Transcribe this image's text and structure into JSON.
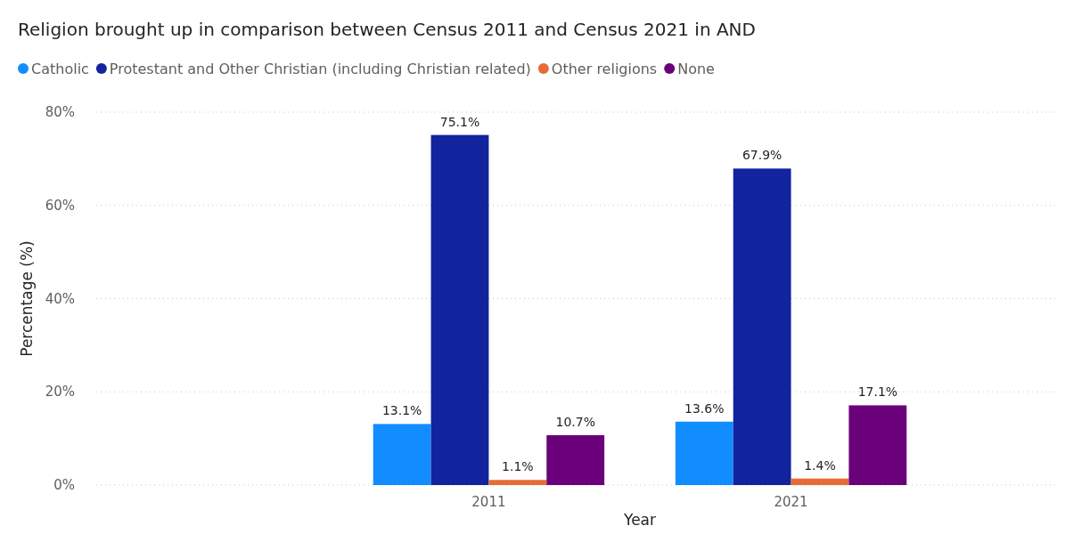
{
  "chart_data": {
    "type": "bar",
    "title": "Religion brought up in comparison between Census 2011 and Census 2021 in AND",
    "xlabel": "Year",
    "ylabel": "Percentage (%)",
    "categories": [
      "2011",
      "2021"
    ],
    "series": [
      {
        "name": "Catholic",
        "color": "#118dff",
        "values": [
          13.1,
          13.6
        ],
        "value_labels": [
          "13.1%",
          "13.6%"
        ]
      },
      {
        "name": "Protestant and Other Christian (including Christian related)",
        "color": "#12239e",
        "values": [
          75.1,
          67.9
        ],
        "value_labels": [
          "75.1%",
          "67.9%"
        ]
      },
      {
        "name": "Other religions",
        "color": "#e66c37",
        "values": [
          1.1,
          1.4
        ],
        "value_labels": [
          "1.1%",
          "1.4%"
        ]
      },
      {
        "name": "None",
        "color": "#6b007b",
        "values": [
          10.7,
          17.1
        ],
        "value_labels": [
          "10.7%",
          "17.1%"
        ]
      }
    ],
    "ylim": [
      0,
      80
    ],
    "yticks": [
      {
        "value": 0,
        "label": "0%"
      },
      {
        "value": 20,
        "label": "20%"
      },
      {
        "value": 40,
        "label": "40%"
      },
      {
        "value": 60,
        "label": "60%"
      },
      {
        "value": 80,
        "label": "80%"
      }
    ],
    "grid": "y",
    "legend": "top left"
  }
}
